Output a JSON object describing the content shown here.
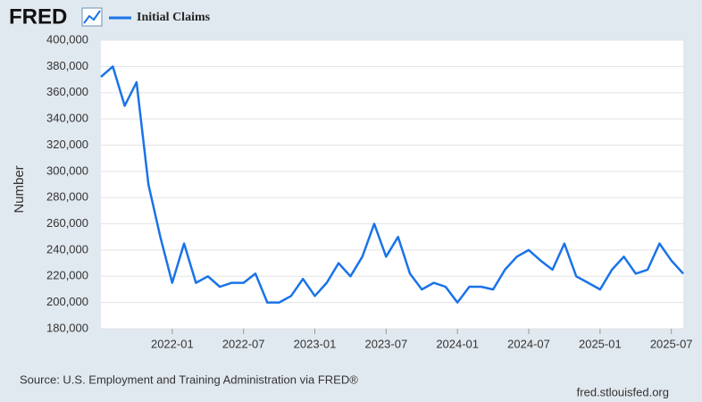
{
  "logo": "FRED",
  "chart_data": {
    "type": "line",
    "legend_label": "Initial Claims",
    "y_axis_label": "Number",
    "source": "Source: U.S. Employment and Training Administration via FRED®",
    "site": "fred.stlouisfed.org",
    "x": [
      "2021-07",
      "2021-08",
      "2021-09",
      "2021-10",
      "2021-11",
      "2021-12",
      "2022-01",
      "2022-02",
      "2022-03",
      "2022-04",
      "2022-05",
      "2022-06",
      "2022-07",
      "2022-08",
      "2022-09",
      "2022-10",
      "2022-11",
      "2022-12",
      "2023-01",
      "2023-02",
      "2023-03",
      "2023-04",
      "2023-05",
      "2023-06",
      "2023-07",
      "2023-08",
      "2023-09",
      "2023-10",
      "2023-11",
      "2023-12",
      "2024-01",
      "2024-02",
      "2024-03",
      "2024-04",
      "2024-05",
      "2024-06",
      "2024-07",
      "2024-08",
      "2024-09",
      "2024-10",
      "2024-11",
      "2024-12",
      "2025-01",
      "2025-02",
      "2025-03",
      "2025-04",
      "2025-05",
      "2025-06",
      "2025-07",
      "2025-08"
    ],
    "series": [
      {
        "name": "Initial Claims",
        "color": "#1a73e8",
        "values": [
          372000,
          380000,
          350000,
          368000,
          290000,
          250000,
          215000,
          245000,
          215000,
          220000,
          212000,
          215000,
          215000,
          222000,
          200000,
          200000,
          205000,
          218000,
          205000,
          215000,
          230000,
          220000,
          235000,
          260000,
          235000,
          250000,
          222000,
          210000,
          215000,
          212000,
          200000,
          212000,
          212000,
          210000,
          225000,
          235000,
          240000,
          232000,
          225000,
          245000,
          220000,
          215000,
          210000,
          225000,
          235000,
          222000,
          225000,
          245000,
          232000,
          222000
        ]
      }
    ],
    "xlim": [
      "2021-07",
      "2025-08"
    ],
    "xticks": [
      "2022-01",
      "2022-07",
      "2023-01",
      "2023-07",
      "2024-01",
      "2024-07",
      "2025-01",
      "2025-07"
    ],
    "ylim": [
      180000,
      400000
    ],
    "yticks": [
      {
        "value": 180000,
        "label": "180,000"
      },
      {
        "value": 200000,
        "label": "200,000"
      },
      {
        "value": 220000,
        "label": "220,000"
      },
      {
        "value": 240000,
        "label": "240,000"
      },
      {
        "value": 260000,
        "label": "260,000"
      },
      {
        "value": 280000,
        "label": "280,000"
      },
      {
        "value": 300000,
        "label": "300,000"
      },
      {
        "value": 320000,
        "label": "320,000"
      },
      {
        "value": 340000,
        "label": "340,000"
      },
      {
        "value": 360000,
        "label": "360,000"
      },
      {
        "value": 380000,
        "label": "380,000"
      },
      {
        "value": 400000,
        "label": "400,000"
      }
    ],
    "grid": true
  }
}
